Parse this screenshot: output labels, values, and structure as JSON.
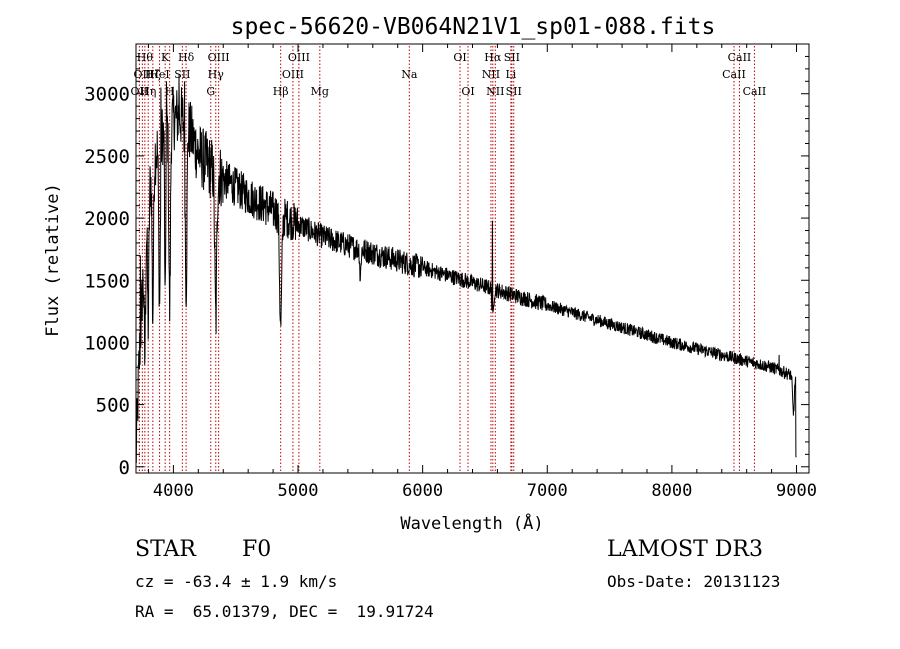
{
  "colors": {
    "spectrum": "#000000",
    "line_marker": "#c00000",
    "axis": "#000000"
  },
  "chart_data": {
    "type": "line",
    "title": "spec-56620-VB064N21V1_sp01-088.fits",
    "xlabel": "Wavelength (Å)",
    "ylabel": "Flux (relative)",
    "xlim": [
      3700,
      9100
    ],
    "ylim": [
      -50,
      3400
    ],
    "x_ticks": [
      4000,
      5000,
      6000,
      7000,
      8000,
      9000
    ],
    "x_tick_labels": [
      "4000",
      "5000",
      "6000",
      "7000",
      "8000",
      "9000"
    ],
    "y_ticks": [
      0,
      500,
      1000,
      1500,
      2000,
      2500,
      3000
    ],
    "y_tick_labels": [
      "0",
      "500",
      "1000",
      "1500",
      "2000",
      "2500",
      "3000"
    ],
    "continuum": [
      {
        "x": 3700,
        "y": 50
      },
      {
        "x": 3720,
        "y": 700
      },
      {
        "x": 3760,
        "y": 1600
      },
      {
        "x": 3800,
        "y": 2200
      },
      {
        "x": 3850,
        "y": 2500
      },
      {
        "x": 3900,
        "y": 2650
      },
      {
        "x": 3950,
        "y": 2750
      },
      {
        "x": 4000,
        "y": 2800
      },
      {
        "x": 4050,
        "y": 2820
      },
      {
        "x": 4100,
        "y": 2780
      },
      {
        "x": 4150,
        "y": 2650
      },
      {
        "x": 4200,
        "y": 2520
      },
      {
        "x": 4300,
        "y": 2400
      },
      {
        "x": 4400,
        "y": 2320
      },
      {
        "x": 4500,
        "y": 2250
      },
      {
        "x": 4600,
        "y": 2180
      },
      {
        "x": 4700,
        "y": 2120
      },
      {
        "x": 4800,
        "y": 2060
      },
      {
        "x": 5000,
        "y": 1950
      },
      {
        "x": 5200,
        "y": 1850
      },
      {
        "x": 5400,
        "y": 1780
      },
      {
        "x": 5600,
        "y": 1720
      },
      {
        "x": 5800,
        "y": 1660
      },
      {
        "x": 6000,
        "y": 1600
      },
      {
        "x": 6200,
        "y": 1540
      },
      {
        "x": 6400,
        "y": 1480
      },
      {
        "x": 6600,
        "y": 1420
      },
      {
        "x": 6800,
        "y": 1360
      },
      {
        "x": 7000,
        "y": 1300
      },
      {
        "x": 7200,
        "y": 1240
      },
      {
        "x": 7400,
        "y": 1180
      },
      {
        "x": 7600,
        "y": 1120
      },
      {
        "x": 7800,
        "y": 1060
      },
      {
        "x": 8000,
        "y": 1000
      },
      {
        "x": 8200,
        "y": 950
      },
      {
        "x": 8400,
        "y": 900
      },
      {
        "x": 8600,
        "y": 850
      },
      {
        "x": 8800,
        "y": 800
      },
      {
        "x": 8950,
        "y": 740
      },
      {
        "x": 9000,
        "y": 720
      }
    ],
    "absorption_features": [
      {
        "x": 3771,
        "depth": 900,
        "width": 8
      },
      {
        "x": 3798,
        "depth": 1000,
        "width": 8
      },
      {
        "x": 3835,
        "depth": 1200,
        "width": 8
      },
      {
        "x": 3889,
        "depth": 1300,
        "width": 9
      },
      {
        "x": 3934,
        "depth": 1500,
        "width": 6
      },
      {
        "x": 3970,
        "depth": 1500,
        "width": 9
      },
      {
        "x": 4102,
        "depth": 1300,
        "width": 10
      },
      {
        "x": 4340,
        "depth": 1200,
        "width": 11
      },
      {
        "x": 4861,
        "depth": 900,
        "width": 12
      },
      {
        "x": 5500,
        "depth": 250,
        "width": 6
      },
      {
        "x": 6563,
        "depth": 250,
        "width": 9
      },
      {
        "x": 8975,
        "depth": 300,
        "width": 10
      }
    ],
    "spikes": [
      {
        "x": 3735,
        "y": 1700
      },
      {
        "x": 3900,
        "y": 3050
      },
      {
        "x": 3945,
        "y": 3100
      },
      {
        "x": 4045,
        "y": 3150
      },
      {
        "x": 4090,
        "y": 3100
      },
      {
        "x": 6560,
        "y": 1980
      },
      {
        "x": 8860,
        "y": 900
      }
    ],
    "line_markers": [
      {
        "x": 3727,
        "label": "OII",
        "row": 2
      },
      {
        "x": 3751,
        "label": "OII",
        "row": 1
      },
      {
        "x": 3771,
        "label": "Hθ",
        "row": 0
      },
      {
        "x": 3798,
        "label": "Hη",
        "row": 2
      },
      {
        "x": 3835,
        "label": "Hζ",
        "row": 1
      },
      {
        "x": 3889,
        "label": "HeI",
        "row": 1
      },
      {
        "x": 3934,
        "label": "K",
        "row": 0
      },
      {
        "x": 3970,
        "label": "H",
        "row": 2
      },
      {
        "x": 4072,
        "label": "SII",
        "row": 1
      },
      {
        "x": 4102,
        "label": "Hδ",
        "row": 0
      },
      {
        "x": 4300,
        "label": "G",
        "row": 2
      },
      {
        "x": 4340,
        "label": "Hγ",
        "row": 1
      },
      {
        "x": 4363,
        "label": "OIII",
        "row": 0
      },
      {
        "x": 4861,
        "label": "Hβ",
        "row": 2
      },
      {
        "x": 4959,
        "label": "OIII",
        "row": 1
      },
      {
        "x": 5007,
        "label": "OIII",
        "row": 0
      },
      {
        "x": 5175,
        "label": "Mg",
        "row": 2
      },
      {
        "x": 5893,
        "label": "Na",
        "row": 1
      },
      {
        "x": 6300,
        "label": "OI",
        "row": 0
      },
      {
        "x": 6364,
        "label": "OI",
        "row": 2
      },
      {
        "x": 6548,
        "label": "NII",
        "row": 1
      },
      {
        "x": 6563,
        "label": "Hα",
        "row": 0
      },
      {
        "x": 6583,
        "label": "NII",
        "row": 2
      },
      {
        "x": 6708,
        "label": "Li",
        "row": 1
      },
      {
        "x": 6716,
        "label": "SII",
        "row": 0
      },
      {
        "x": 6731,
        "label": "SII",
        "row": 2
      },
      {
        "x": 8498,
        "label": "CaII",
        "row": 1
      },
      {
        "x": 8542,
        "label": "CaII",
        "row": 0
      },
      {
        "x": 8662,
        "label": "CaII",
        "row": 2
      }
    ]
  },
  "info": {
    "object_class": "STAR",
    "subclass": "F0",
    "survey": "LAMOST DR3",
    "redshift_text": "cz = -63.4 ± 1.9 km/s",
    "obs_date_text": "Obs-Date: 20131123",
    "coords_text": "RA =  65.01379, DEC =  19.91724"
  }
}
